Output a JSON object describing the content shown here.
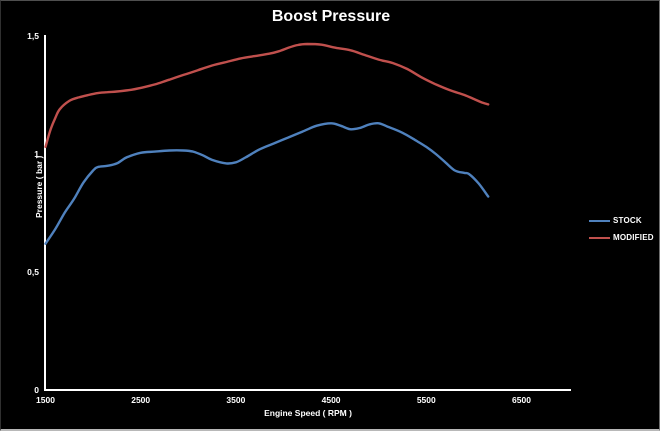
{
  "chart_data": {
    "type": "line",
    "title": "Boost Pressure",
    "xlabel": "Engine Speed ( RPM )",
    "ylabel": "Pressure ( bar )",
    "xlim": [
      1500,
      6500
    ],
    "ylim": [
      0,
      1.5
    ],
    "grid": false,
    "legend_position": "right",
    "background_color": "#000000",
    "axis_color": "#ffffff",
    "text_color": "#ffffff",
    "x_ticks": [
      {
        "value": 1500,
        "label": "1500"
      },
      {
        "value": 2500,
        "label": "2500"
      },
      {
        "value": 3500,
        "label": "3500"
      },
      {
        "value": 4500,
        "label": "4500"
      },
      {
        "value": 5500,
        "label": "5500"
      },
      {
        "value": 6500,
        "label": "6500"
      }
    ],
    "y_ticks": [
      {
        "value": 1.5,
        "label": "1,5"
      },
      {
        "value": 1.0,
        "label": "1"
      },
      {
        "value": 0.5,
        "label": "0,5"
      },
      {
        "value": 0.0,
        "label": "0"
      }
    ],
    "series": [
      {
        "name": "STOCK",
        "color": "#4F81BD",
        "points": [
          [
            1500,
            0.62
          ],
          [
            1600,
            0.68
          ],
          [
            1700,
            0.75
          ],
          [
            1800,
            0.81
          ],
          [
            1900,
            0.88
          ],
          [
            2000,
            0.93
          ],
          [
            2050,
            0.945
          ],
          [
            2150,
            0.95
          ],
          [
            2250,
            0.96
          ],
          [
            2350,
            0.985
          ],
          [
            2500,
            1.005
          ],
          [
            2650,
            1.01
          ],
          [
            2800,
            1.015
          ],
          [
            2950,
            1.015
          ],
          [
            3050,
            1.01
          ],
          [
            3150,
            0.995
          ],
          [
            3250,
            0.975
          ],
          [
            3400,
            0.96
          ],
          [
            3500,
            0.965
          ],
          [
            3600,
            0.985
          ],
          [
            3750,
            1.02
          ],
          [
            3900,
            1.045
          ],
          [
            4050,
            1.07
          ],
          [
            4200,
            1.095
          ],
          [
            4350,
            1.12
          ],
          [
            4500,
            1.13
          ],
          [
            4600,
            1.12
          ],
          [
            4700,
            1.105
          ],
          [
            4800,
            1.11
          ],
          [
            4900,
            1.125
          ],
          [
            5000,
            1.13
          ],
          [
            5100,
            1.115
          ],
          [
            5250,
            1.09
          ],
          [
            5400,
            1.055
          ],
          [
            5500,
            1.03
          ],
          [
            5600,
            1.0
          ],
          [
            5700,
            0.965
          ],
          [
            5800,
            0.93
          ],
          [
            5900,
            0.92
          ],
          [
            5950,
            0.915
          ],
          [
            6050,
            0.875
          ],
          [
            6150,
            0.82
          ]
        ]
      },
      {
        "name": "MODIFIED",
        "color": "#C0504D",
        "points": [
          [
            1500,
            1.03
          ],
          [
            1550,
            1.1
          ],
          [
            1600,
            1.15
          ],
          [
            1650,
            1.19
          ],
          [
            1750,
            1.225
          ],
          [
            1850,
            1.24
          ],
          [
            1950,
            1.25
          ],
          [
            2050,
            1.258
          ],
          [
            2150,
            1.262
          ],
          [
            2250,
            1.265
          ],
          [
            2400,
            1.272
          ],
          [
            2500,
            1.28
          ],
          [
            2650,
            1.295
          ],
          [
            2800,
            1.315
          ],
          [
            2950,
            1.335
          ],
          [
            3100,
            1.355
          ],
          [
            3250,
            1.375
          ],
          [
            3400,
            1.39
          ],
          [
            3550,
            1.405
          ],
          [
            3700,
            1.415
          ],
          [
            3850,
            1.425
          ],
          [
            3950,
            1.435
          ],
          [
            4050,
            1.45
          ],
          [
            4150,
            1.462
          ],
          [
            4250,
            1.466
          ],
          [
            4400,
            1.463
          ],
          [
            4550,
            1.45
          ],
          [
            4700,
            1.44
          ],
          [
            4850,
            1.42
          ],
          [
            5000,
            1.4
          ],
          [
            5150,
            1.385
          ],
          [
            5300,
            1.36
          ],
          [
            5450,
            1.325
          ],
          [
            5600,
            1.295
          ],
          [
            5750,
            1.27
          ],
          [
            5900,
            1.25
          ],
          [
            6000,
            1.233
          ],
          [
            6075,
            1.22
          ],
          [
            6150,
            1.21
          ]
        ]
      }
    ]
  }
}
